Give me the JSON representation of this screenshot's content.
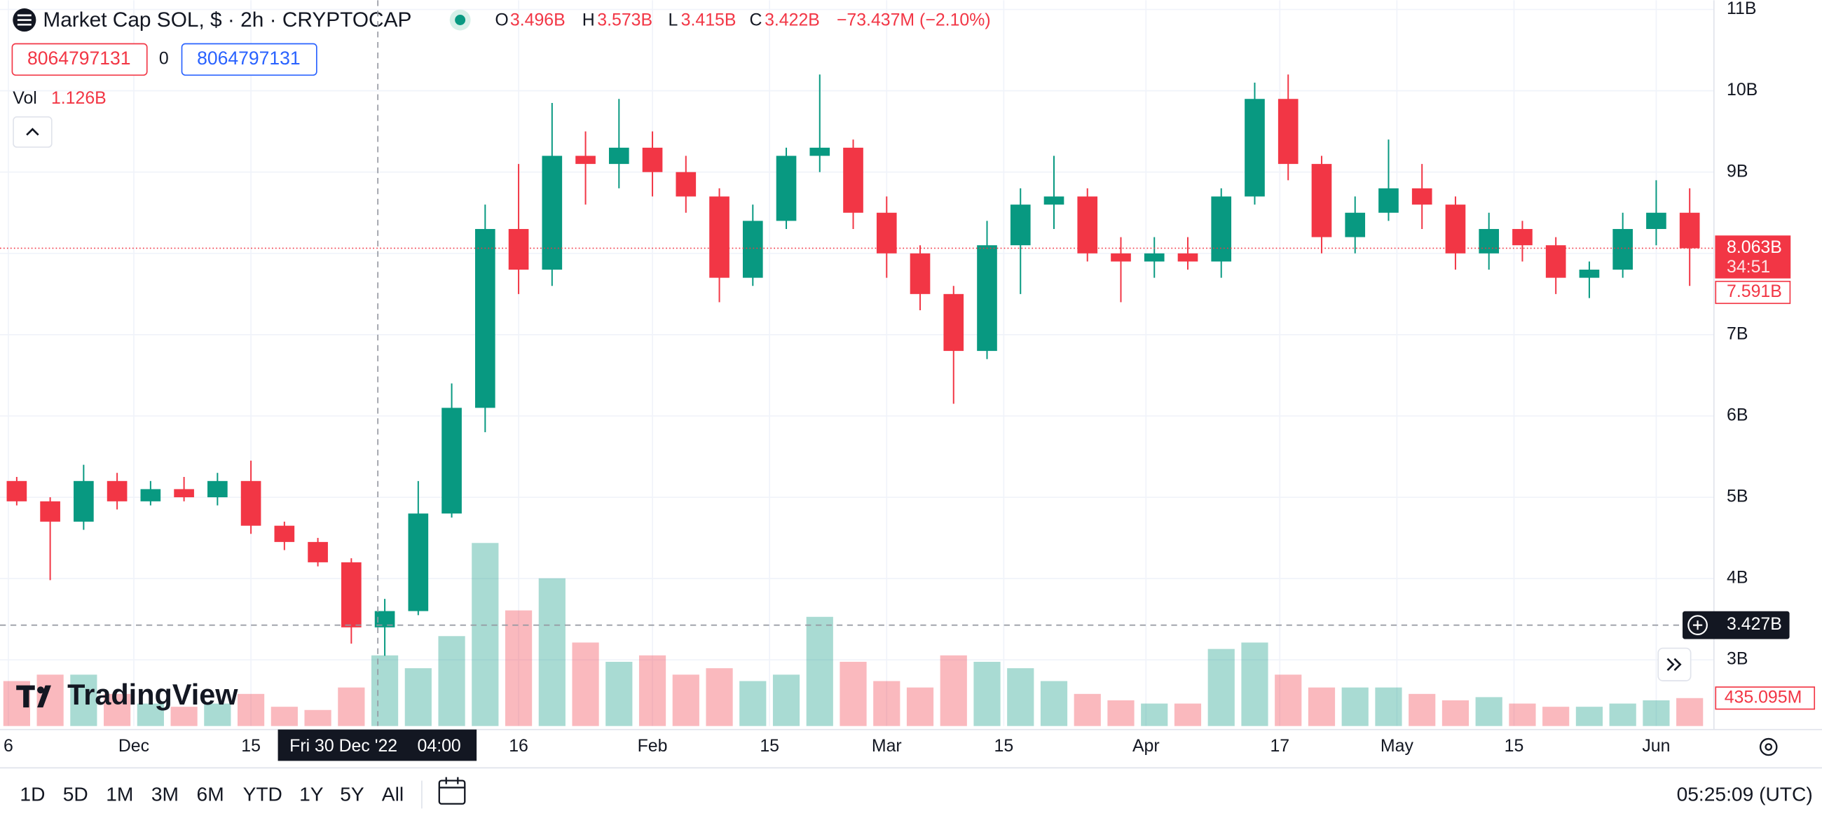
{
  "chart_data": {
    "type": "candlestick",
    "legend": {
      "symbol": "Market Cap SOL, $ · 2h · CRYPTOCAP",
      "o_key": "O",
      "open": "3.496B",
      "h_key": "H",
      "high": "3.573B",
      "l_key": "L",
      "low": "3.415B",
      "c_key": "C",
      "close": "3.422B",
      "change": "−73.437M (−2.10%)"
    },
    "order_boxes": [
      "8064797131",
      "0",
      "8064797131"
    ],
    "volume_legend": {
      "name": "Vol",
      "value": "1.126B"
    },
    "logo": "TradingView",
    "xlim": [
      0,
      204.9
    ],
    "xticks": [
      {
        "value": 1,
        "label": "6"
      },
      {
        "value": 16,
        "label": "Dec"
      },
      {
        "value": 30,
        "label": "15"
      },
      {
        "value": 62,
        "label": "16"
      },
      {
        "value": 78,
        "label": "Feb"
      },
      {
        "value": 92,
        "label": "15"
      },
      {
        "value": 106,
        "label": "Mar"
      },
      {
        "value": 120,
        "label": "15"
      },
      {
        "value": 137,
        "label": "Apr"
      },
      {
        "value": 153,
        "label": "17"
      },
      {
        "value": 167,
        "label": "May"
      },
      {
        "value": 181,
        "label": "15"
      },
      {
        "value": 198,
        "label": "Jun"
      }
    ],
    "ylim": [
      2.186,
      11.114
    ],
    "yticks": [
      {
        "value": 3,
        "label": "3B"
      },
      {
        "value": 4,
        "label": "4B"
      },
      {
        "value": 5,
        "label": "5B"
      },
      {
        "value": 6,
        "label": "6B"
      },
      {
        "value": 7,
        "label": "7B"
      },
      {
        "value": 8,
        "label": "8B"
      },
      {
        "value": 9,
        "label": "9B"
      },
      {
        "value": 10,
        "label": "10B"
      },
      {
        "value": 11,
        "label": "11B"
      }
    ],
    "y2lim": [
      0,
      11.3
    ],
    "grid": true,
    "up_color": "#089981",
    "down_color": "#f23645",
    "x": [
      2,
      6,
      10,
      14,
      18,
      22,
      26,
      30,
      34,
      38,
      42,
      46,
      50,
      54,
      58,
      62,
      66,
      70,
      74,
      78,
      82,
      86,
      90,
      94,
      98,
      102,
      106,
      110,
      114,
      118,
      122,
      126,
      130,
      134,
      138,
      142,
      146,
      150,
      154,
      158,
      162,
      166,
      170,
      174,
      178,
      182,
      186,
      190,
      194,
      198,
      202
    ],
    "open": [
      5.2,
      4.95,
      4.7,
      5.2,
      4.95,
      5.1,
      5.0,
      5.2,
      4.65,
      4.45,
      4.2,
      3.4,
      3.6,
      4.8,
      6.1,
      8.3,
      7.8,
      9.2,
      9.1,
      9.3,
      9.0,
      8.7,
      7.7,
      8.4,
      9.2,
      9.3,
      8.5,
      8.0,
      7.5,
      6.8,
      8.1,
      8.6,
      8.7,
      8.0,
      7.9,
      8.0,
      7.9,
      8.7,
      9.9,
      9.1,
      8.2,
      8.5,
      8.8,
      8.6,
      8.0,
      8.3,
      8.1,
      7.7,
      7.8,
      8.3,
      8.5
    ],
    "high": [
      5.25,
      5.0,
      5.4,
      5.3,
      5.2,
      5.25,
      5.3,
      5.45,
      4.7,
      4.5,
      4.25,
      3.75,
      5.2,
      6.4,
      8.6,
      9.1,
      9.85,
      9.5,
      9.9,
      9.5,
      9.2,
      8.8,
      8.6,
      9.3,
      10.2,
      9.4,
      8.7,
      8.1,
      7.6,
      8.4,
      8.8,
      9.2,
      8.8,
      8.2,
      8.2,
      8.2,
      8.8,
      10.1,
      10.2,
      9.2,
      8.7,
      9.4,
      9.1,
      8.7,
      8.5,
      8.4,
      8.2,
      7.9,
      8.5,
      8.9,
      8.8
    ],
    "low": [
      4.9,
      3.98,
      4.6,
      4.85,
      4.9,
      4.95,
      4.9,
      4.55,
      4.35,
      4.15,
      3.2,
      3.05,
      3.55,
      4.75,
      5.8,
      7.5,
      7.6,
      8.6,
      8.8,
      8.7,
      8.5,
      7.4,
      7.6,
      8.3,
      9.0,
      8.3,
      7.7,
      7.3,
      6.15,
      6.7,
      7.5,
      8.3,
      7.9,
      7.4,
      7.7,
      7.8,
      7.7,
      8.6,
      8.9,
      8.0,
      8.0,
      8.4,
      8.3,
      7.8,
      7.8,
      7.9,
      7.5,
      7.45,
      7.7,
      8.1,
      7.6
    ],
    "close": [
      4.95,
      4.7,
      5.2,
      4.95,
      5.1,
      5.0,
      5.2,
      4.65,
      4.45,
      4.2,
      3.4,
      3.6,
      4.8,
      6.1,
      8.3,
      7.8,
      9.2,
      9.1,
      9.3,
      9.0,
      8.7,
      7.7,
      8.4,
      9.2,
      9.3,
      8.5,
      8.0,
      7.5,
      6.8,
      8.1,
      8.6,
      8.7,
      8.0,
      7.9,
      8.0,
      7.9,
      8.7,
      9.9,
      9.1,
      8.2,
      8.5,
      8.8,
      8.6,
      8.0,
      8.3,
      8.1,
      7.7,
      7.8,
      8.3,
      8.5,
      8.063
    ],
    "volume": [
      0.7,
      0.8,
      0.8,
      0.5,
      0.35,
      0.3,
      0.35,
      0.5,
      0.3,
      0.25,
      0.6,
      1.1,
      0.9,
      1.4,
      2.85,
      1.8,
      2.3,
      1.3,
      1.0,
      1.1,
      0.8,
      0.9,
      0.7,
      0.8,
      1.7,
      1.0,
      0.7,
      0.6,
      1.1,
      1.0,
      0.9,
      0.7,
      0.5,
      0.4,
      0.35,
      0.35,
      1.2,
      1.3,
      0.8,
      0.6,
      0.6,
      0.6,
      0.5,
      0.4,
      0.45,
      0.35,
      0.3,
      0.3,
      0.35,
      0.4,
      0.435095
    ],
    "last_price": {
      "value": 8.063,
      "label": "8.063B"
    },
    "countdown": "34:51",
    "marker_price": {
      "value": 7.591,
      "label": "7.591B"
    },
    "crosshair": {
      "x": 45.17,
      "date": "Fri 30 Dec '22",
      "time": "04:00",
      "value": 3.427,
      "label": "3.427B"
    },
    "volume_last": {
      "value": 0.435095,
      "label": "435.095M"
    },
    "ranges": [
      "1D",
      "5D",
      "1M",
      "3M",
      "6M",
      "YTD",
      "1Y",
      "5Y",
      "All"
    ],
    "clock": "05:25:09 (UTC)"
  }
}
